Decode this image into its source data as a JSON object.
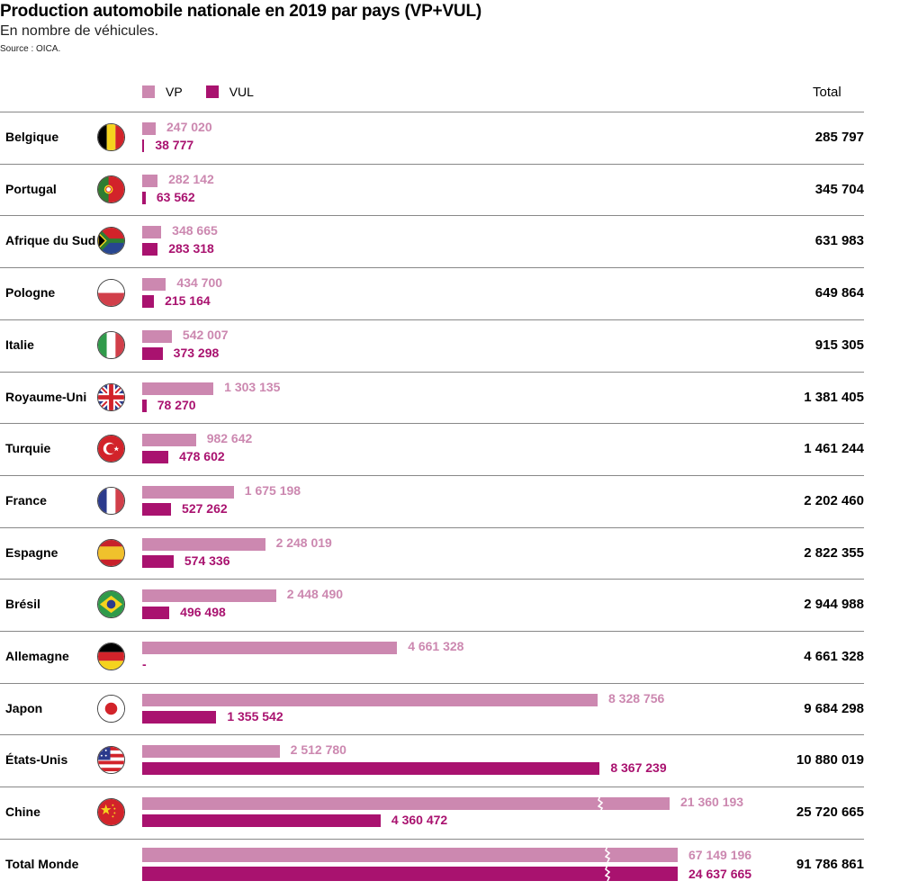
{
  "title": "Production automobile nationale en 2019 par pays (VP+VUL)",
  "subtitle": "En nombre de véhicules.",
  "source": "Source : OICA.",
  "legend": {
    "vp": "VP",
    "vul": "VUL"
  },
  "total_header": "Total",
  "colors": {
    "vp": "#cc88b0",
    "vul": "#a9126f"
  },
  "chart_data": {
    "type": "bar",
    "title": "Production automobile nationale en 2019 par pays (VP+VUL)",
    "subtitle": "En nombre de véhicules.",
    "xlabel": "",
    "ylabel": "",
    "legend_position": "top-left",
    "axis_break_above": 8400000,
    "categories": [
      "Belgique",
      "Portugal",
      "Afrique du Sud",
      "Pologne",
      "Italie",
      "Royaume-Uni",
      "Turquie",
      "France",
      "Espagne",
      "Brésil",
      "Allemagne",
      "Japon",
      "États-Unis",
      "Chine",
      "Total Monde"
    ],
    "flags": [
      "belgium",
      "portugal",
      "south-africa",
      "poland",
      "italy",
      "uk",
      "turkey",
      "france",
      "spain",
      "brazil",
      "germany",
      "japan",
      "usa",
      "china",
      ""
    ],
    "series": [
      {
        "name": "VP",
        "values": [
          247020,
          282142,
          348665,
          434700,
          542007,
          1303135,
          982642,
          1675198,
          2248019,
          2448490,
          4661328,
          8328756,
          2512780,
          21360193,
          67149196
        ],
        "labels": [
          "247 020",
          "282 142",
          "348 665",
          "434 700",
          "542 007",
          "1 303 135",
          "982 642",
          "1 675 198",
          "2 248 019",
          "2 448 490",
          "4 661 328",
          "8 328 756",
          "2 512 780",
          "21 360 193",
          "67 149 196"
        ]
      },
      {
        "name": "VUL",
        "values": [
          38777,
          63562,
          283318,
          215164,
          373298,
          78270,
          478602,
          527262,
          574336,
          496498,
          0,
          1355542,
          8367239,
          4360472,
          24637665
        ],
        "labels": [
          "38 777",
          "63 562",
          "283 318",
          "215 164",
          "373 298",
          "78 270",
          "478 602",
          "527 262",
          "574 336",
          "496 498",
          "-",
          "1 355 542",
          "8 367 239",
          "4 360 472",
          "24 637 665"
        ]
      }
    ],
    "totals": [
      "285 797",
      "345 704",
      "631 983",
      "649 864",
      "915 305",
      "1 381 405",
      "1 461 244",
      "2 202 460",
      "2 822 355",
      "2 944 988",
      "4 661 328",
      "9 684 298",
      "10 880 019",
      "25 720 665",
      "91 786 861"
    ]
  }
}
